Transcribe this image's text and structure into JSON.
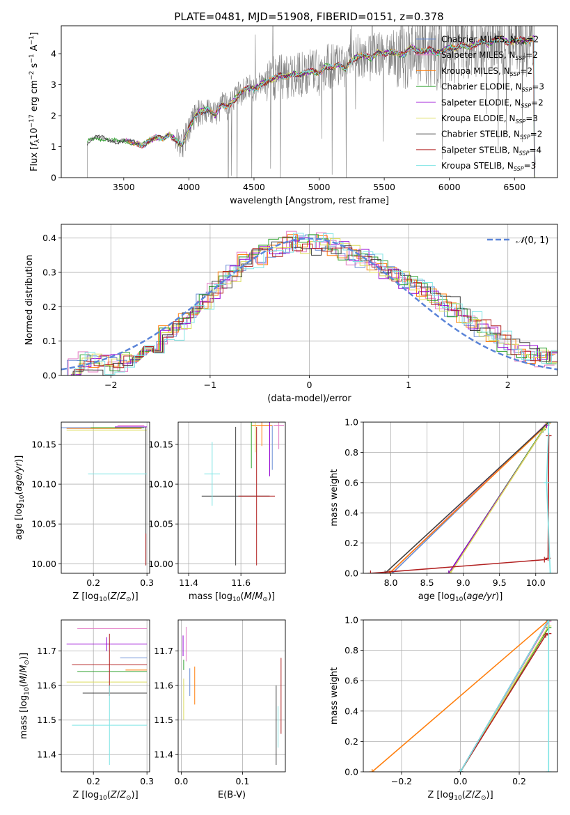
{
  "figure": {
    "title": "PLATE=0481, MJD=51908, FIBERID=0151, z=0.378"
  },
  "models": [
    {
      "name": "Chabrier MILES",
      "nssp": "2",
      "color": "#6a8ed6"
    },
    {
      "name": "Salpeter MILES",
      "nssp": "2",
      "color": "#e377c2"
    },
    {
      "name": "Kroupa MILES",
      "nssp": "2",
      "color": "#ff7f0e"
    },
    {
      "name": "Chabrier ELODIE",
      "nssp": "3",
      "color": "#2ca02c"
    },
    {
      "name": "Salpeter ELODIE",
      "nssp": "2",
      "color": "#9400d3"
    },
    {
      "name": "Kroupa ELODIE",
      "nssp": "3",
      "color": "#dbdb5a"
    },
    {
      "name": "Chabrier STELIB",
      "nssp": "2",
      "color": "#404040"
    },
    {
      "name": "Salpeter STELIB",
      "nssp": "4",
      "color": "#b22222"
    },
    {
      "name": "Kroupa STELIB",
      "nssp": "3",
      "color": "#7fe5e5"
    }
  ],
  "chart_data": [
    {
      "id": "spectrum",
      "type": "line",
      "xlabel": "wavelength [Angstrom, rest frame]",
      "ylabel": "Flux [f_λ 10^-17 erg cm^-2 s^-1 A^-1]",
      "xlim": [
        3020,
        6830
      ],
      "ylim": [
        0,
        4.9
      ],
      "xticks": [
        3500,
        4000,
        4500,
        5000,
        5500,
        6000,
        6500
      ],
      "yticks": [
        0,
        1,
        2,
        3,
        4
      ],
      "grid": false,
      "legend": "right",
      "data_color": "#808080",
      "continuum_points": {
        "x": [
          3220,
          3250,
          3300,
          3350,
          3400,
          3450,
          3500,
          3550,
          3600,
          3650,
          3700,
          3750,
          3800,
          3850,
          3900,
          3950,
          4000,
          4050,
          4100,
          4150,
          4200,
          4250,
          4300,
          4350,
          4400,
          4450,
          4500,
          4550,
          4600,
          4650,
          4700,
          4750,
          4800,
          4850,
          4900,
          4950,
          5000,
          5050,
          5100,
          5150,
          5200,
          5250,
          5300,
          5350,
          5400,
          5450,
          5500,
          5550,
          5600,
          5650,
          5700,
          5750,
          5800,
          5850,
          5900,
          5950,
          6000,
          6050,
          6100,
          6150,
          6200,
          6250,
          6300,
          6350,
          6400,
          6450,
          6500,
          6550,
          6600,
          6650
        ],
        "y": [
          1.15,
          1.25,
          1.3,
          1.25,
          1.2,
          1.15,
          1.2,
          1.15,
          1.1,
          1.05,
          1.2,
          1.3,
          1.25,
          1.4,
          1.2,
          1.05,
          1.6,
          2.0,
          2.15,
          2.2,
          2.0,
          2.35,
          2.3,
          2.5,
          2.75,
          2.9,
          2.85,
          3.0,
          3.1,
          3.2,
          3.3,
          3.25,
          3.35,
          3.3,
          3.4,
          3.45,
          3.35,
          3.6,
          3.55,
          3.65,
          3.5,
          3.8,
          3.9,
          3.95,
          3.85,
          4.05,
          4.0,
          4.05,
          4.0,
          3.95,
          4.2,
          4.1,
          4.05,
          4.15,
          4.0,
          4.1,
          4.2,
          4.15,
          4.3,
          4.2,
          4.3,
          4.4,
          4.3,
          4.45,
          4.5,
          4.35,
          4.4,
          4.45,
          4.4,
          4.5
        ]
      }
    },
    {
      "id": "residuals",
      "type": "line",
      "xlabel": "(data-model)/error",
      "ylabel": "Normed distribution",
      "xlim": [
        -2.5,
        2.5
      ],
      "ylim": [
        0,
        0.44
      ],
      "xticks": [
        -2,
        -1,
        0,
        1,
        2
      ],
      "yticks": [
        0.0,
        0.1,
        0.2,
        0.3,
        0.4
      ],
      "grid": true,
      "legend": "top-right",
      "normal_label": "N(0,1)",
      "normal_color": "#5a84d8",
      "bins": [
        -2.5,
        -2.4,
        -2.3,
        -2.2,
        -2.1,
        -2.0,
        -1.9,
        -1.8,
        -1.7,
        -1.6,
        -1.5,
        -1.4,
        -1.3,
        -1.2,
        -1.1,
        -1.0,
        -0.9,
        -0.8,
        -0.7,
        -0.6,
        -0.5,
        -0.4,
        -0.3,
        -0.2,
        -0.1,
        0.0,
        0.1,
        0.2,
        0.3,
        0.4,
        0.5,
        0.6,
        0.7,
        0.8,
        0.9,
        1.0,
        1.1,
        1.2,
        1.3,
        1.4,
        1.5,
        1.6,
        1.7,
        1.8,
        1.9,
        2.0,
        2.1,
        2.2,
        2.3,
        2.4
      ],
      "base_heights": [
        0.02,
        0.02,
        0.04,
        0.04,
        0.03,
        0.04,
        0.04,
        0.06,
        0.07,
        0.09,
        0.12,
        0.13,
        0.16,
        0.18,
        0.22,
        0.25,
        0.28,
        0.3,
        0.33,
        0.34,
        0.35,
        0.37,
        0.38,
        0.39,
        0.38,
        0.38,
        0.39,
        0.37,
        0.36,
        0.35,
        0.34,
        0.33,
        0.31,
        0.3,
        0.28,
        0.26,
        0.25,
        0.23,
        0.21,
        0.2,
        0.18,
        0.16,
        0.14,
        0.12,
        0.1,
        0.08,
        0.07,
        0.06,
        0.05,
        0.05
      ]
    },
    {
      "id": "age-vs-z",
      "type": "scatter",
      "xlabel": "Z [log10(Z/Z⊙)]",
      "ylabel": "age  [log10(age/yr)]",
      "xlim": [
        0.14,
        0.305
      ],
      "ylim": [
        9.988,
        10.178
      ],
      "xticks": [
        0.2,
        0.3
      ],
      "yticks": [
        10.0,
        10.05,
        10.1,
        10.15
      ],
      "grid": true,
      "points": [
        {
          "x": 0.205,
          "y": 10.171,
          "xerr": 0.09,
          "yerr": 0.0
        },
        {
          "x": 0.27,
          "y": 10.174,
          "xerr": 0.025,
          "yerr": 0.0
        },
        {
          "x": 0.22,
          "y": 10.17,
          "xerr": 0.07,
          "yerr": 0.0
        },
        {
          "x": 0.245,
          "y": 10.171,
          "xerr": 0.05,
          "yerr": 0.0
        },
        {
          "x": 0.27,
          "y": 10.172,
          "xerr": 0.03,
          "yerr": 0.0
        },
        {
          "x": 0.225,
          "y": 10.168,
          "xerr": 0.075,
          "yerr": 0.0
        },
        {
          "x": 0.298,
          "y": 10.085,
          "xerr": 0.0,
          "yerr": 0.087
        },
        {
          "x": 0.298,
          "y": 10.018,
          "xerr": 0.0,
          "yerr": 0.02
        },
        {
          "x": 0.245,
          "y": 10.113,
          "xerr": 0.055,
          "yerr": 0.0
        }
      ]
    },
    {
      "id": "age-vs-mass",
      "type": "scatter",
      "xlabel": "mass [log10(M/M⊙)]",
      "ylabel": "",
      "xlim": [
        11.36,
        11.77
      ],
      "ylim": [
        9.988,
        10.178
      ],
      "xticks": [
        11.4,
        11.6
      ],
      "yticks": [
        10.0,
        10.05,
        10.1,
        10.15
      ],
      "grid": true,
      "points": [
        {
          "x": 11.72,
          "y": 10.146,
          "xerr": 0.0,
          "yerr": 0.028
        },
        {
          "x": 11.745,
          "y": 10.174,
          "xerr": 0.02,
          "yerr": 0.03
        },
        {
          "x": 11.68,
          "y": 10.174,
          "xerr": 0.04,
          "yerr": 0.026
        },
        {
          "x": 11.64,
          "y": 10.15,
          "xerr": 0.0,
          "yerr": 0.03
        },
        {
          "x": 11.71,
          "y": 10.145,
          "xerr": 0.0,
          "yerr": 0.035
        },
        {
          "x": 11.655,
          "y": 10.16,
          "xerr": 0.0,
          "yerr": 0.02
        },
        {
          "x": 11.58,
          "y": 10.085,
          "xerr": 0.13,
          "yerr": 0.087
        },
        {
          "x": 11.66,
          "y": 10.085,
          "xerr": 0.07,
          "yerr": 0.087
        },
        {
          "x": 11.49,
          "y": 10.113,
          "xerr": 0.03,
          "yerr": 0.04
        }
      ]
    },
    {
      "id": "weight-vs-age",
      "type": "line",
      "xlabel": "age  [log10(age/yr)]",
      "ylabel": "mass weight",
      "xlim": [
        7.62,
        10.3
      ],
      "ylim": [
        0,
        1.0
      ],
      "xticks": [
        8.0,
        8.5,
        9.0,
        9.5,
        10.0
      ],
      "yticks": [
        0.0,
        0.2,
        0.4,
        0.6,
        0.8,
        1.0
      ],
      "grid": true,
      "paths": [
        {
          "x": [
            8.02,
            10.17
          ],
          "y": [
            0.0,
            1.0
          ]
        },
        {
          "x": [
            7.98,
            10.17
          ],
          "y": [
            0.0,
            1.0
          ]
        },
        {
          "x": [
            7.98,
            10.17
          ],
          "y": [
            0.0,
            0.99
          ]
        },
        {
          "x": [
            8.8,
            10.1,
            10.17
          ],
          "y": [
            0.0,
            0.95,
            1.0
          ]
        },
        {
          "x": [
            8.8,
            10.15
          ],
          "y": [
            0.0,
            0.98
          ]
        },
        {
          "x": [
            8.82,
            10.12,
            10.16
          ],
          "y": [
            0.0,
            0.96,
            1.0
          ]
        },
        {
          "x": [
            7.92,
            10.18
          ],
          "y": [
            0.0,
            1.0
          ]
        },
        {
          "x": [
            7.72,
            10.12,
            10.17,
            10.18
          ],
          "y": [
            0.0,
            0.09,
            0.1,
            0.91
          ]
        },
        {
          "x": [
            10.2,
            10.15,
            10.18
          ],
          "y": [
            0.0,
            0.6,
            1.0
          ]
        }
      ]
    },
    {
      "id": "mass-vs-z",
      "type": "scatter",
      "xlabel": "Z [log10(Z/Z⊙)]",
      "ylabel": "mass [log10(M/M⊙)]",
      "xlim": [
        0.14,
        0.305
      ],
      "ylim": [
        11.35,
        11.79
      ],
      "xticks": [
        0.2,
        0.3
      ],
      "yticks": [
        11.4,
        11.5,
        11.6,
        11.7
      ],
      "grid": true,
      "points": [
        {
          "x": 0.275,
          "y": 11.68,
          "xerr": 0.025,
          "yerr": 0.0
        },
        {
          "x": 0.235,
          "y": 11.765,
          "xerr": 0.065,
          "yerr": 0.0
        },
        {
          "x": 0.28,
          "y": 11.645,
          "xerr": 0.02,
          "yerr": 0.0
        },
        {
          "x": 0.235,
          "y": 11.64,
          "xerr": 0.065,
          "yerr": 0.0
        },
        {
          "x": 0.225,
          "y": 11.72,
          "xerr": 0.075,
          "yerr": 0.02
        },
        {
          "x": 0.225,
          "y": 11.61,
          "xerr": 0.075,
          "yerr": 0.0
        },
        {
          "x": 0.24,
          "y": 11.578,
          "xerr": 0.06,
          "yerr": 0.0
        },
        {
          "x": 0.23,
          "y": 11.66,
          "xerr": 0.07,
          "yerr": 0.09
        },
        {
          "x": 0.23,
          "y": 11.485,
          "xerr": 0.07,
          "yerr": 0.115
        }
      ]
    },
    {
      "id": "mass-vs-ebv",
      "type": "scatter",
      "xlabel": "E(B-V)",
      "ylabel": "",
      "xlim": [
        -0.005,
        0.17
      ],
      "ylim": [
        11.35,
        11.79
      ],
      "xticks": [
        0.0,
        0.1
      ],
      "yticks": [
        11.4,
        11.5,
        11.6,
        11.7
      ],
      "grid": true,
      "points": [
        {
          "x": 0.014,
          "y": 11.61,
          "xerr": 0.0,
          "yerr": 0.04
        },
        {
          "x": 0.008,
          "y": 11.72,
          "xerr": 0.0,
          "yerr": 0.05
        },
        {
          "x": 0.022,
          "y": 11.6,
          "xerr": 0.0,
          "yerr": 0.055
        },
        {
          "x": 0.004,
          "y": 11.66,
          "xerr": 0.0,
          "yerr": 0.015
        },
        {
          "x": 0.003,
          "y": 11.715,
          "xerr": 0.0,
          "yerr": 0.03
        },
        {
          "x": 0.004,
          "y": 11.56,
          "xerr": 0.0,
          "yerr": 0.06
        },
        {
          "x": 0.155,
          "y": 11.485,
          "xerr": 0.0,
          "yerr": 0.115
        },
        {
          "x": 0.163,
          "y": 11.57,
          "xerr": 0.0,
          "yerr": 0.11
        },
        {
          "x": 0.158,
          "y": 11.48,
          "xerr": 0.0,
          "yerr": 0.06
        }
      ]
    },
    {
      "id": "weight-vs-z",
      "type": "line",
      "xlabel": "Z [log10(Z/Z⊙)]",
      "ylabel": "mass weight",
      "xlim": [
        -0.33,
        0.33
      ],
      "ylim": [
        0,
        1.0
      ],
      "xticks": [
        -0.2,
        0.0,
        0.2
      ],
      "yticks": [
        0.0,
        0.2,
        0.4,
        0.6,
        0.8,
        1.0
      ],
      "grid": true,
      "paths": [
        {
          "x": [
            0.0,
            0.3
          ],
          "y": [
            0.0,
            1.0
          ]
        },
        {
          "x": [
            0.0,
            0.3
          ],
          "y": [
            0.0,
            0.99
          ]
        },
        {
          "x": [
            -0.3,
            0.3
          ],
          "y": [
            0.0,
            1.0
          ]
        },
        {
          "x": [
            0.0,
            0.3,
            0.3
          ],
          "y": [
            0.0,
            0.95,
            1.0
          ]
        },
        {
          "x": [
            0.0,
            0.3
          ],
          "y": [
            0.0,
            1.0
          ]
        },
        {
          "x": [
            0.0,
            0.3,
            0.3
          ],
          "y": [
            0.0,
            0.96,
            1.0
          ]
        },
        {
          "x": [
            0.0,
            0.3
          ],
          "y": [
            0.0,
            1.0
          ]
        },
        {
          "x": [
            0.0,
            0.29,
            0.3,
            0.3
          ],
          "y": [
            0.0,
            0.9,
            0.91,
            1.0
          ]
        },
        {
          "x": [
            0.0,
            0.3,
            0.3
          ],
          "y": [
            0.0,
            1.0,
            0.0
          ]
        }
      ]
    }
  ]
}
